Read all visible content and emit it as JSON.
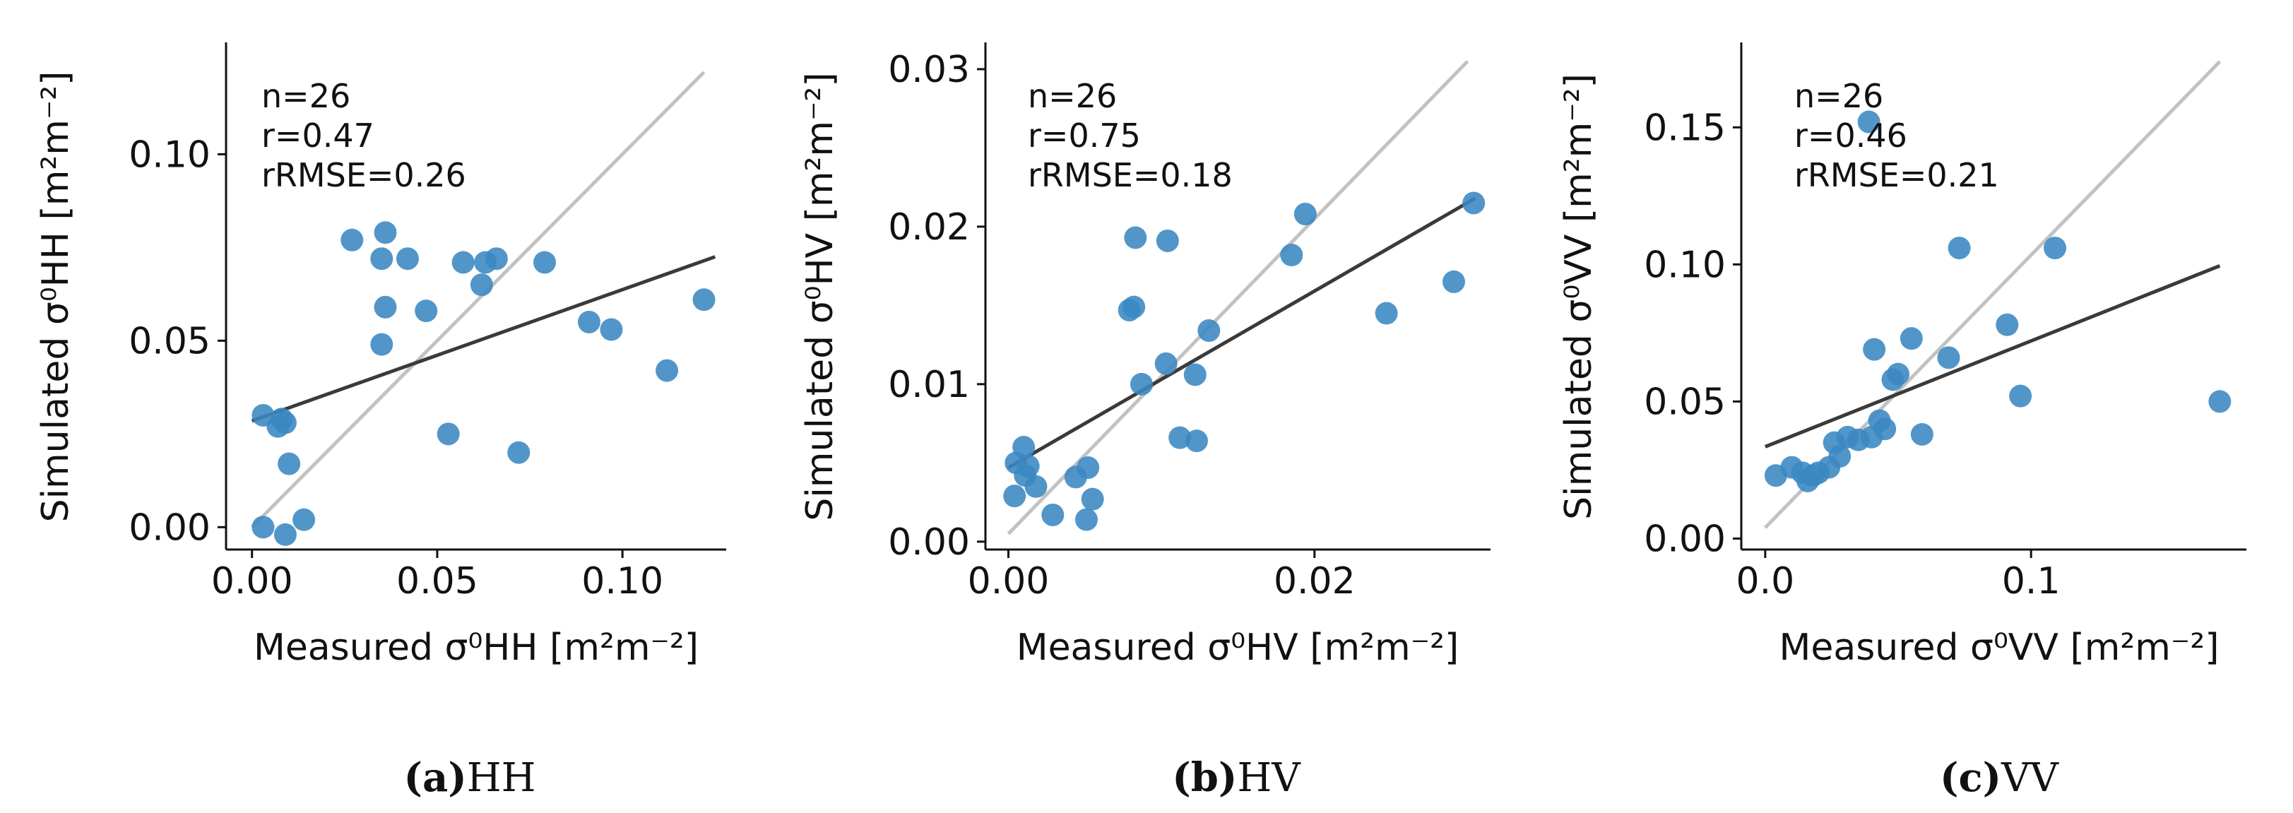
{
  "colors": {
    "point": "#3a87c2",
    "fit_line": "#3a3a3a",
    "one_to_one": "#c2c2c2",
    "axis": "#111111"
  },
  "chart_data": [
    {
      "type": "scatter",
      "panel": "HH",
      "caption_letter": "(a)",
      "caption_text": "HH",
      "xlabel": "Measured σ⁰HH [m²m⁻²]",
      "ylabel": "Simulated σ⁰HH [m²m⁻²]",
      "xlim": [
        -0.007,
        0.128
      ],
      "ylim": [
        -0.006,
        0.13
      ],
      "xticks": [
        0.0,
        0.05,
        0.1
      ],
      "xtick_labels": [
        "0.00",
        "0.05",
        "0.10"
      ],
      "yticks": [
        0.0,
        0.05,
        0.1
      ],
      "ytick_labels": [
        "0.00",
        "0.05",
        "0.10"
      ],
      "stats": {
        "n": "n=26",
        "r": "r=0.47",
        "rrmse": "rRMSE=0.26"
      },
      "one_to_one": [
        [
          0.0,
          0.0
        ],
        [
          0.122,
          0.122
        ]
      ],
      "fit_line": [
        [
          0.0,
          0.0285
        ],
        [
          0.125,
          0.0725
        ]
      ],
      "points": [
        {
          "x": 0.003,
          "y": 0.03
        },
        {
          "x": 0.007,
          "y": 0.027
        },
        {
          "x": 0.008,
          "y": 0.029
        },
        {
          "x": 0.009,
          "y": 0.028
        },
        {
          "x": 0.01,
          "y": 0.017
        },
        {
          "x": 0.003,
          "y": 0.0
        },
        {
          "x": 0.009,
          "y": -0.002
        },
        {
          "x": 0.014,
          "y": 0.002
        },
        {
          "x": 0.027,
          "y": 0.077
        },
        {
          "x": 0.035,
          "y": 0.072
        },
        {
          "x": 0.036,
          "y": 0.079
        },
        {
          "x": 0.036,
          "y": 0.059
        },
        {
          "x": 0.035,
          "y": 0.049
        },
        {
          "x": 0.042,
          "y": 0.072
        },
        {
          "x": 0.047,
          "y": 0.058
        },
        {
          "x": 0.053,
          "y": 0.025
        },
        {
          "x": 0.057,
          "y": 0.071
        },
        {
          "x": 0.062,
          "y": 0.065
        },
        {
          "x": 0.063,
          "y": 0.071
        },
        {
          "x": 0.066,
          "y": 0.072
        },
        {
          "x": 0.072,
          "y": 0.02
        },
        {
          "x": 0.079,
          "y": 0.071
        },
        {
          "x": 0.091,
          "y": 0.055
        },
        {
          "x": 0.097,
          "y": 0.053
        },
        {
          "x": 0.112,
          "y": 0.042
        },
        {
          "x": 0.122,
          "y": 0.061
        }
      ]
    },
    {
      "type": "scatter",
      "panel": "HV",
      "caption_letter": "(b)",
      "caption_text": "HV",
      "xlabel": "Measured σ⁰HV [m²m⁻²]",
      "ylabel": "Simulated σ⁰HV [m²m⁻²]",
      "xlim": [
        -0.0015,
        0.0315
      ],
      "ylim": [
        -0.0005,
        0.0317
      ],
      "xticks": [
        0.0,
        0.02
      ],
      "xtick_labels": [
        "0.00",
        "0.02"
      ],
      "yticks": [
        0.0,
        0.01,
        0.02,
        0.03
      ],
      "ytick_labels": [
        "0.00",
        "0.01",
        "0.02",
        "0.03"
      ],
      "stats": {
        "n": "n=26",
        "r": "r=0.75",
        "rrmse": "rRMSE=0.18"
      },
      "one_to_one": [
        [
          0.0,
          0.0005
        ],
        [
          0.03,
          0.0305
        ]
      ],
      "fit_line": [
        [
          0.0,
          0.0047
        ],
        [
          0.0305,
          0.0218
        ]
      ],
      "points": [
        {
          "x": 0.0004,
          "y": 0.0029
        },
        {
          "x": 0.0005,
          "y": 0.005
        },
        {
          "x": 0.001,
          "y": 0.006
        },
        {
          "x": 0.0011,
          "y": 0.0042
        },
        {
          "x": 0.0013,
          "y": 0.0048
        },
        {
          "x": 0.0018,
          "y": 0.0035
        },
        {
          "x": 0.0029,
          "y": 0.0017
        },
        {
          "x": 0.0044,
          "y": 0.0041
        },
        {
          "x": 0.0051,
          "y": 0.0014
        },
        {
          "x": 0.0052,
          "y": 0.0047
        },
        {
          "x": 0.0055,
          "y": 0.0027
        },
        {
          "x": 0.0079,
          "y": 0.0147
        },
        {
          "x": 0.0082,
          "y": 0.0149
        },
        {
          "x": 0.0083,
          "y": 0.0193
        },
        {
          "x": 0.0087,
          "y": 0.01
        },
        {
          "x": 0.0103,
          "y": 0.0113
        },
        {
          "x": 0.0104,
          "y": 0.0191
        },
        {
          "x": 0.0112,
          "y": 0.0066
        },
        {
          "x": 0.0122,
          "y": 0.0106
        },
        {
          "x": 0.0123,
          "y": 0.0064
        },
        {
          "x": 0.0131,
          "y": 0.0134
        },
        {
          "x": 0.0185,
          "y": 0.0182
        },
        {
          "x": 0.0194,
          "y": 0.0208
        },
        {
          "x": 0.0247,
          "y": 0.0145
        },
        {
          "x": 0.0291,
          "y": 0.0165
        },
        {
          "x": 0.0304,
          "y": 0.0215
        }
      ]
    },
    {
      "type": "scatter",
      "panel": "VV",
      "caption_letter": "(c)",
      "caption_text": "VV",
      "xlabel": "Measured σ⁰VV [m²m⁻²]",
      "ylabel": "Simulated σ⁰VV [m²m⁻²]",
      "xlim": [
        -0.009,
        0.181
      ],
      "ylim": [
        -0.004,
        0.181
      ],
      "xticks": [
        0.0,
        0.1
      ],
      "xtick_labels": [
        "0.0",
        "0.1"
      ],
      "yticks": [
        0.0,
        0.05,
        0.1,
        0.15
      ],
      "ytick_labels": [
        "0.00",
        "0.05",
        "0.10",
        "0.15"
      ],
      "stats": {
        "n": "n=26",
        "r": "r=0.46",
        "rrmse": "rRMSE=0.21"
      },
      "one_to_one": [
        [
          0.0,
          0.004
        ],
        [
          0.171,
          0.174
        ]
      ],
      "fit_line": [
        [
          0.0,
          0.0335
        ],
        [
          0.171,
          0.0995
        ]
      ],
      "points": [
        {
          "x": 0.004,
          "y": 0.023
        },
        {
          "x": 0.01,
          "y": 0.026
        },
        {
          "x": 0.014,
          "y": 0.024
        },
        {
          "x": 0.016,
          "y": 0.021
        },
        {
          "x": 0.018,
          "y": 0.023
        },
        {
          "x": 0.02,
          "y": 0.024
        },
        {
          "x": 0.024,
          "y": 0.026
        },
        {
          "x": 0.026,
          "y": 0.035
        },
        {
          "x": 0.028,
          "y": 0.03
        },
        {
          "x": 0.031,
          "y": 0.037
        },
        {
          "x": 0.035,
          "y": 0.036
        },
        {
          "x": 0.04,
          "y": 0.037
        },
        {
          "x": 0.041,
          "y": 0.069
        },
        {
          "x": 0.043,
          "y": 0.043
        },
        {
          "x": 0.048,
          "y": 0.058
        },
        {
          "x": 0.05,
          "y": 0.06
        },
        {
          "x": 0.055,
          "y": 0.073
        },
        {
          "x": 0.059,
          "y": 0.038
        },
        {
          "x": 0.069,
          "y": 0.066
        },
        {
          "x": 0.073,
          "y": 0.106
        },
        {
          "x": 0.039,
          "y": 0.152
        },
        {
          "x": 0.091,
          "y": 0.078
        },
        {
          "x": 0.096,
          "y": 0.052
        },
        {
          "x": 0.109,
          "y": 0.106
        },
        {
          "x": 0.171,
          "y": 0.05
        },
        {
          "x": 0.045,
          "y": 0.04
        }
      ]
    }
  ]
}
